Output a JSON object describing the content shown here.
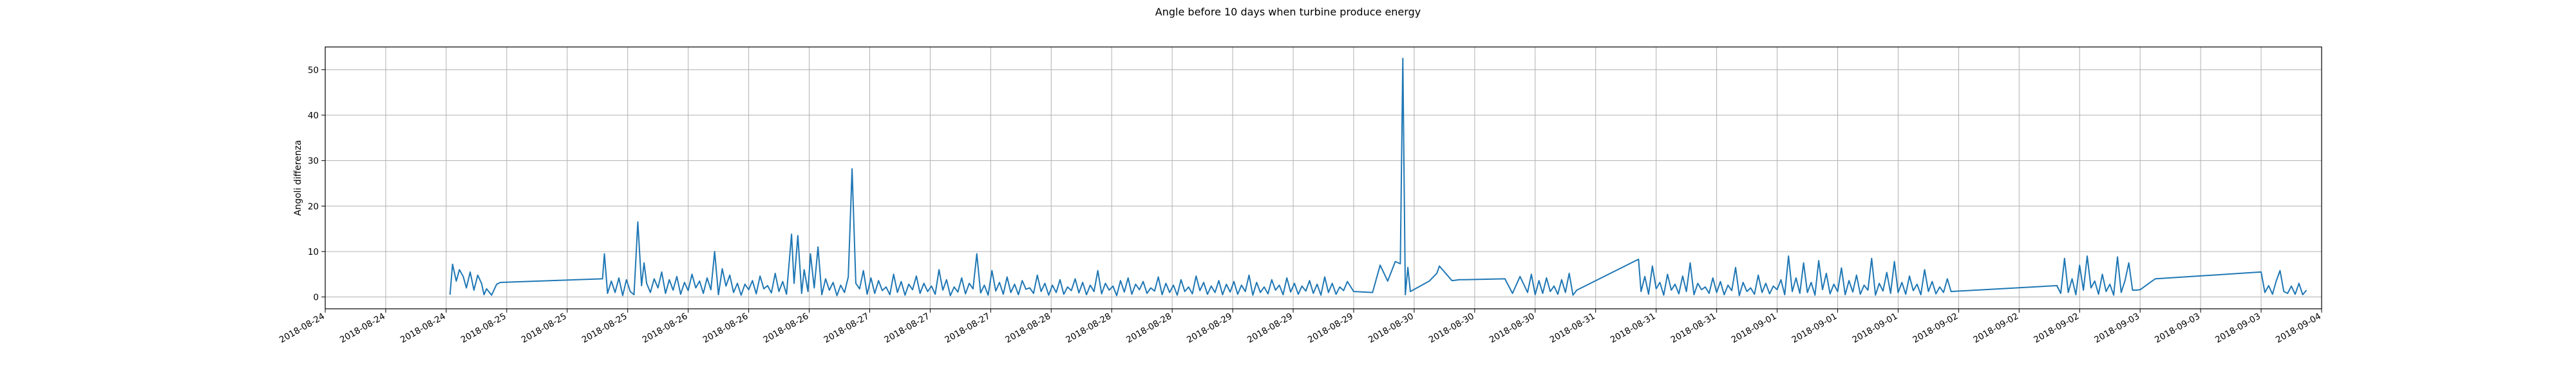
{
  "chart_data": {
    "type": "line",
    "title": "Angle before 10 days when turbine produce energy",
    "xlabel": "",
    "ylabel": "Angoli differenza",
    "grid": true,
    "ylim": [
      -2.6,
      55
    ],
    "yticks": [
      0,
      10,
      20,
      30,
      40,
      50
    ],
    "xlim": [
      "2018-08-24T00:00",
      "2018-09-04T00:00"
    ],
    "xtick_labels": [
      "2018-08-24",
      "2018-08-24",
      "2018-08-24",
      "2018-08-25",
      "2018-08-25",
      "2018-08-25",
      "2018-08-26",
      "2018-08-26",
      "2018-08-26",
      "2018-08-27",
      "2018-08-27",
      "2018-08-27",
      "2018-08-28",
      "2018-08-28",
      "2018-08-28",
      "2018-08-29",
      "2018-08-29",
      "2018-08-29",
      "2018-08-30",
      "2018-08-30",
      "2018-08-30",
      "2018-08-31",
      "2018-08-31",
      "2018-08-31",
      "2018-09-01",
      "2018-09-01",
      "2018-09-01",
      "2018-09-02",
      "2018-09-02",
      "2018-09-02",
      "2018-09-03",
      "2018-09-03",
      "2018-09-03",
      "2018-09-04"
    ],
    "series": [
      {
        "name": "",
        "color": "#1f77b4",
        "x": [
          "2018-08-24T16:30",
          "2018-08-24T16:50",
          "2018-08-24T17:20",
          "2018-08-24T17:45",
          "2018-08-24T18:15",
          "2018-08-24T18:40",
          "2018-08-24T19:10",
          "2018-08-24T19:40",
          "2018-08-24T20:10",
          "2018-08-24T20:40",
          "2018-08-24T21:00",
          "2018-08-24T21:20",
          "2018-08-24T22:00",
          "2018-08-24T22:40",
          "2018-08-24T23:10",
          "2018-08-25T12:40",
          "2018-08-25T12:55",
          "2018-08-25T13:20",
          "2018-08-25T13:50",
          "2018-08-25T14:20",
          "2018-08-25T14:50",
          "2018-08-25T15:20",
          "2018-08-25T15:50",
          "2018-08-25T16:20",
          "2018-08-25T16:50",
          "2018-08-25T17:20",
          "2018-08-25T17:50",
          "2018-08-25T18:10",
          "2018-08-25T18:30",
          "2018-08-25T19:00",
          "2018-08-25T19:30",
          "2018-08-25T20:00",
          "2018-08-25T20:30",
          "2018-08-25T21:00",
          "2018-08-25T21:30",
          "2018-08-25T22:00",
          "2018-08-25T22:30",
          "2018-08-25T23:00",
          "2018-08-25T23:30",
          "2018-08-26T00:00",
          "2018-08-26T00:30",
          "2018-08-26T01:00",
          "2018-08-26T01:30",
          "2018-08-26T02:00",
          "2018-08-26T02:30",
          "2018-08-26T03:00",
          "2018-08-26T03:30",
          "2018-08-26T04:00",
          "2018-08-26T04:30",
          "2018-08-26T05:00",
          "2018-08-26T05:30",
          "2018-08-26T06:00",
          "2018-08-26T06:30",
          "2018-08-26T07:00",
          "2018-08-26T07:30",
          "2018-08-26T08:00",
          "2018-08-26T08:30",
          "2018-08-26T09:00",
          "2018-08-26T09:30",
          "2018-08-26T10:00",
          "2018-08-26T10:30",
          "2018-08-26T11:00",
          "2018-08-26T11:30",
          "2018-08-26T12:00",
          "2018-08-26T12:30",
          "2018-08-26T13:00",
          "2018-08-26T13:40",
          "2018-08-26T14:00",
          "2018-08-26T14:30",
          "2018-08-26T15:00",
          "2018-08-26T15:20",
          "2018-08-26T15:50",
          "2018-08-26T16:10",
          "2018-08-26T16:40",
          "2018-08-26T17:10",
          "2018-08-26T17:40",
          "2018-08-26T18:10",
          "2018-08-26T18:40",
          "2018-08-26T19:10",
          "2018-08-26T19:40",
          "2018-08-26T20:10",
          "2018-08-26T20:40",
          "2018-08-26T21:10",
          "2018-08-26T21:40",
          "2018-08-26T22:10",
          "2018-08-26T22:40",
          "2018-08-26T23:10",
          "2018-08-26T23:40",
          "2018-08-27T00:10",
          "2018-08-27T00:40",
          "2018-08-27T01:10",
          "2018-08-27T01:40",
          "2018-08-27T02:10",
          "2018-08-27T02:40",
          "2018-08-27T03:10",
          "2018-08-27T03:40",
          "2018-08-27T04:10",
          "2018-08-27T04:40",
          "2018-08-27T05:10",
          "2018-08-27T05:40",
          "2018-08-27T06:10",
          "2018-08-27T06:40",
          "2018-08-27T07:10",
          "2018-08-27T07:40",
          "2018-08-27T08:10",
          "2018-08-27T08:40",
          "2018-08-27T09:10",
          "2018-08-27T09:40",
          "2018-08-27T10:10",
          "2018-08-27T10:40",
          "2018-08-27T11:10",
          "2018-08-27T11:40",
          "2018-08-27T12:10",
          "2018-08-27T12:40",
          "2018-08-27T13:10",
          "2018-08-27T13:40",
          "2018-08-27T14:10",
          "2018-08-27T14:40",
          "2018-08-27T15:10",
          "2018-08-27T15:40",
          "2018-08-27T16:10",
          "2018-08-27T16:40",
          "2018-08-27T17:10",
          "2018-08-27T17:40",
          "2018-08-27T18:10",
          "2018-08-27T18:40",
          "2018-08-27T19:10",
          "2018-08-27T19:40",
          "2018-08-27T20:10",
          "2018-08-27T20:40",
          "2018-08-27T21:10",
          "2018-08-27T21:40",
          "2018-08-27T22:10",
          "2018-08-27T22:40",
          "2018-08-27T23:10",
          "2018-08-27T23:40",
          "2018-08-28T00:10",
          "2018-08-28T00:40",
          "2018-08-28T01:10",
          "2018-08-28T01:40",
          "2018-08-28T02:10",
          "2018-08-28T02:40",
          "2018-08-28T03:10",
          "2018-08-28T03:40",
          "2018-08-28T04:10",
          "2018-08-28T04:40",
          "2018-08-28T05:10",
          "2018-08-28T05:40",
          "2018-08-28T06:10",
          "2018-08-28T06:40",
          "2018-08-28T07:10",
          "2018-08-28T07:40",
          "2018-08-28T08:10",
          "2018-08-28T08:40",
          "2018-08-28T09:10",
          "2018-08-28T09:40",
          "2018-08-28T10:10",
          "2018-08-28T10:40",
          "2018-08-28T11:10",
          "2018-08-28T11:40",
          "2018-08-28T12:10",
          "2018-08-28T12:40",
          "2018-08-28T13:10",
          "2018-08-28T13:40",
          "2018-08-28T14:10",
          "2018-08-28T14:40",
          "2018-08-28T15:10",
          "2018-08-28T15:40",
          "2018-08-28T16:10",
          "2018-08-28T16:40",
          "2018-08-28T17:10",
          "2018-08-28T17:40",
          "2018-08-28T18:10",
          "2018-08-28T18:40",
          "2018-08-28T19:10",
          "2018-08-28T19:40",
          "2018-08-28T20:10",
          "2018-08-28T20:40",
          "2018-08-28T21:10",
          "2018-08-28T21:40",
          "2018-08-28T22:10",
          "2018-08-28T22:40",
          "2018-08-28T23:10",
          "2018-08-28T23:40",
          "2018-08-29T00:10",
          "2018-08-29T00:40",
          "2018-08-29T01:10",
          "2018-08-29T01:40",
          "2018-08-29T02:10",
          "2018-08-29T02:40",
          "2018-08-29T03:10",
          "2018-08-29T03:40",
          "2018-08-29T04:10",
          "2018-08-29T04:40",
          "2018-08-29T05:10",
          "2018-08-29T05:40",
          "2018-08-29T06:10",
          "2018-08-29T06:40",
          "2018-08-29T07:10",
          "2018-08-29T07:40",
          "2018-08-29T08:10",
          "2018-08-29T08:40",
          "2018-08-29T09:10",
          "2018-08-29T09:40",
          "2018-08-29T10:10",
          "2018-08-29T10:40",
          "2018-08-29T11:10",
          "2018-08-29T11:40",
          "2018-08-29T12:10",
          "2018-08-29T12:40",
          "2018-08-29T13:10",
          "2018-08-29T13:40",
          "2018-08-29T14:10",
          "2018-08-29T14:40",
          "2018-08-29T15:10",
          "2018-08-29T16:00",
          "2018-08-29T18:30",
          "2018-08-29T19:30",
          "2018-08-29T20:30",
          "2018-08-29T21:30",
          "2018-08-29T22:10",
          "2018-08-29T22:30",
          "2018-08-29T22:50",
          "2018-08-29T23:10",
          "2018-08-29T23:30",
          "2018-08-30T02:00",
          "2018-08-30T03:00",
          "2018-08-30T03:20",
          "2018-08-30T05:00",
          "2018-08-30T06:00",
          "2018-08-30T06:40",
          "2018-08-30T12:00",
          "2018-08-30T13:00",
          "2018-08-30T14:00",
          "2018-08-30T15:00",
          "2018-08-30T15:30",
          "2018-08-30T16:00",
          "2018-08-30T16:30",
          "2018-08-30T17:00",
          "2018-08-30T17:30",
          "2018-08-30T18:00",
          "2018-08-30T18:30",
          "2018-08-30T19:00",
          "2018-08-30T19:30",
          "2018-08-30T20:00",
          "2018-08-30T20:30",
          "2018-08-30T21:00",
          "2018-08-30T21:30",
          "2018-08-31T05:40",
          "2018-08-31T06:00",
          "2018-08-31T06:30",
          "2018-08-31T07:00",
          "2018-08-31T07:30",
          "2018-08-31T08:00",
          "2018-08-31T08:30",
          "2018-08-31T09:00",
          "2018-08-31T09:30",
          "2018-08-31T10:00",
          "2018-08-31T10:30",
          "2018-08-31T11:00",
          "2018-08-31T11:30",
          "2018-08-31T12:00",
          "2018-08-31T12:30",
          "2018-08-31T13:00",
          "2018-08-31T13:30",
          "2018-08-31T14:00",
          "2018-08-31T14:30",
          "2018-08-31T15:00",
          "2018-08-31T15:30",
          "2018-08-31T16:00",
          "2018-08-31T16:30",
          "2018-08-31T17:00",
          "2018-08-31T17:30",
          "2018-08-31T18:00",
          "2018-08-31T18:30",
          "2018-08-31T19:00",
          "2018-08-31T19:30",
          "2018-08-31T20:00",
          "2018-08-31T20:30",
          "2018-08-31T21:00",
          "2018-08-31T21:30",
          "2018-08-31T22:00",
          "2018-08-31T22:30",
          "2018-08-31T23:00",
          "2018-08-31T23:30",
          "2018-09-01T00:00",
          "2018-09-01T00:30",
          "2018-09-01T01:00",
          "2018-09-01T01:30",
          "2018-09-01T02:00",
          "2018-09-01T02:30",
          "2018-09-01T03:00",
          "2018-09-01T03:30",
          "2018-09-01T04:00",
          "2018-09-01T04:30",
          "2018-09-01T05:00",
          "2018-09-01T05:30",
          "2018-09-01T06:00",
          "2018-09-01T06:30",
          "2018-09-01T07:00",
          "2018-09-01T07:30",
          "2018-09-01T08:00",
          "2018-09-01T08:30",
          "2018-09-01T09:00",
          "2018-09-01T09:30",
          "2018-09-01T10:00",
          "2018-09-01T10:30",
          "2018-09-01T11:00",
          "2018-09-01T11:30",
          "2018-09-01T12:00",
          "2018-09-01T12:30",
          "2018-09-01T13:00",
          "2018-09-01T13:30",
          "2018-09-01T14:00",
          "2018-09-01T14:30",
          "2018-09-01T15:00",
          "2018-09-01T15:30",
          "2018-09-01T16:00",
          "2018-09-01T16:30",
          "2018-09-01T17:00",
          "2018-09-01T17:30",
          "2018-09-01T18:00",
          "2018-09-01T18:30",
          "2018-09-01T19:00",
          "2018-09-01T19:30",
          "2018-09-01T20:00",
          "2018-09-01T20:30",
          "2018-09-01T21:00",
          "2018-09-01T21:30",
          "2018-09-01T22:00",
          "2018-09-01T22:30",
          "2018-09-01T23:00",
          "2018-09-02T13:00",
          "2018-09-02T13:30",
          "2018-09-02T14:00",
          "2018-09-02T14:30",
          "2018-09-02T15:00",
          "2018-09-02T15:30",
          "2018-09-02T16:00",
          "2018-09-02T16:30",
          "2018-09-02T17:00",
          "2018-09-02T17:30",
          "2018-09-02T18:00",
          "2018-09-02T18:30",
          "2018-09-02T19:00",
          "2018-09-02T19:30",
          "2018-09-02T20:00",
          "2018-09-02T20:30",
          "2018-09-02T21:00",
          "2018-09-02T21:30",
          "2018-09-02T22:00",
          "2018-09-02T22:30",
          "2018-09-02T23:00",
          "2018-09-02T23:30",
          "2018-09-03T00:00",
          "2018-09-03T00:30",
          "2018-09-03T01:00",
          "2018-09-03T01:30",
          "2018-09-03T02:00",
          "2018-09-03T16:00",
          "2018-09-03T16:30",
          "2018-09-03T17:00",
          "2018-09-03T17:30",
          "2018-09-03T18:00",
          "2018-09-03T18:30",
          "2018-09-03T19:00",
          "2018-09-03T19:30",
          "2018-09-03T20:00",
          "2018-09-03T20:30",
          "2018-09-03T21:00",
          "2018-09-03T21:30",
          "2018-09-03T22:00"
        ],
        "y": [
          0.5,
          7.2,
          3.5,
          6.0,
          4.5,
          2.0,
          5.5,
          1.5,
          4.8,
          3.0,
          0.5,
          1.8,
          0.4,
          2.8,
          3.2,
          4.0,
          9.5,
          0.8,
          3.5,
          1.0,
          4.2,
          0.3,
          3.8,
          1.2,
          0.5,
          16.5,
          2.5,
          7.5,
          3.0,
          1.0,
          4.0,
          2.0,
          5.5,
          0.8,
          3.8,
          1.5,
          4.5,
          0.6,
          3.2,
          1.4,
          5.0,
          2.0,
          3.5,
          0.8,
          4.2,
          1.6,
          10.0,
          0.5,
          6.2,
          2.4,
          4.8,
          1.0,
          3.0,
          0.4,
          2.8,
          1.6,
          3.6,
          0.7,
          4.6,
          1.8,
          2.5,
          0.9,
          5.2,
          1.2,
          3.4,
          0.6,
          13.8,
          3.0,
          13.5,
          0.8,
          6.0,
          1.2,
          9.5,
          2.0,
          11.0,
          0.5,
          4.0,
          1.5,
          3.2,
          0.3,
          2.6,
          1.0,
          4.4,
          28.2,
          3.0,
          1.8,
          5.8,
          0.6,
          4.2,
          0.8,
          3.6,
          1.4,
          2.2,
          0.5,
          5.0,
          1.0,
          3.4,
          0.4,
          2.8,
          1.6,
          4.6,
          0.8,
          3.0,
          1.2,
          2.4,
          0.6,
          6.0,
          1.5,
          3.8,
          0.3,
          2.2,
          1.1,
          4.2,
          0.7,
          3.0,
          1.8,
          9.5,
          0.9,
          2.6,
          0.4,
          5.8,
          1.3,
          3.2,
          0.6,
          4.4,
          1.0,
          2.8,
          0.5,
          3.6,
          1.7,
          2.0,
          0.8,
          4.8,
          1.2,
          3.0,
          0.4,
          2.6,
          1.0,
          3.8,
          0.6,
          2.2,
          1.4,
          4.0,
          0.9,
          3.2,
          0.5,
          2.6,
          1.2,
          5.8,
          0.7,
          3.0,
          1.5,
          2.4,
          0.3,
          3.6,
          1.1,
          4.2,
          0.6,
          2.8,
          1.6,
          3.4,
          0.8,
          2.0,
          1.3,
          4.4,
          0.5,
          3.0,
          1.0,
          2.6,
          0.4,
          3.8,
          1.2,
          2.2,
          0.7,
          4.6,
          1.4,
          3.2,
          0.6,
          2.4,
          1.0,
          3.6,
          0.5,
          2.8,
          1.1,
          3.4,
          0.6,
          2.6,
          1.2,
          4.8,
          0.4,
          3.2,
          1.0,
          2.2,
          0.7,
          3.8,
          1.5,
          2.6,
          0.5,
          4.2,
          1.1,
          3.0,
          0.6,
          2.4,
          1.3,
          3.6,
          0.8,
          2.8,
          0.4,
          4.4,
          1.0,
          3.0,
          0.6,
          2.2,
          1.4,
          3.4,
          1.2,
          1.0,
          7.0,
          3.5,
          7.8,
          7.3,
          52.5,
          0.5,
          6.5,
          1.2,
          3.5,
          5.2,
          6.8,
          3.6,
          3.8,
          3.8,
          4.0,
          0.8,
          4.5,
          1.0,
          5.0,
          0.5,
          3.6,
          0.8,
          4.2,
          1.2,
          2.4,
          0.6,
          3.8,
          1.0,
          5.2,
          0.4,
          1.5,
          8.3,
          1.2,
          4.5,
          0.6,
          6.8,
          1.8,
          3.2,
          0.4,
          5.0,
          1.5,
          2.8,
          0.7,
          4.6,
          1.2,
          7.5,
          0.5,
          3.0,
          1.6,
          2.2,
          0.8,
          4.2,
          1.0,
          3.4,
          0.5,
          2.6,
          1.4,
          6.5,
          0.3,
          3.2,
          1.2,
          2.0,
          0.6,
          4.8,
          1.0,
          3.0,
          0.7,
          2.4,
          1.6,
          3.8,
          0.5,
          9.0,
          1.2,
          4.2,
          0.8,
          7.5,
          1.0,
          3.2,
          0.4,
          8.0,
          1.6,
          5.2,
          0.7,
          2.8,
          1.2,
          6.4,
          0.5,
          3.6,
          1.1,
          4.8,
          0.6,
          2.6,
          1.5,
          8.5,
          0.4,
          3.0,
          1.3,
          5.4,
          0.8,
          7.8,
          1.0,
          3.2,
          0.6,
          4.6,
          1.4,
          2.8,
          0.5,
          6.0,
          1.2,
          3.4,
          0.7,
          2.2,
          1.0,
          4.0,
          1.2,
          2.5,
          0.8,
          8.5,
          1.0,
          4.0,
          0.5,
          7.0,
          1.5,
          9.0,
          2.0,
          3.5,
          0.6,
          5.0,
          1.2,
          2.8,
          0.4,
          8.8,
          1.0,
          3.6,
          7.5,
          1.5,
          1.5,
          1.6,
          2.2,
          2.8,
          3.4,
          4.0,
          5.5,
          1.0,
          2.5,
          0.6,
          3.5,
          5.8,
          1.2,
          0.8,
          2.4,
          0.6,
          3.0,
          0.5,
          1.5
        ]
      }
    ]
  }
}
